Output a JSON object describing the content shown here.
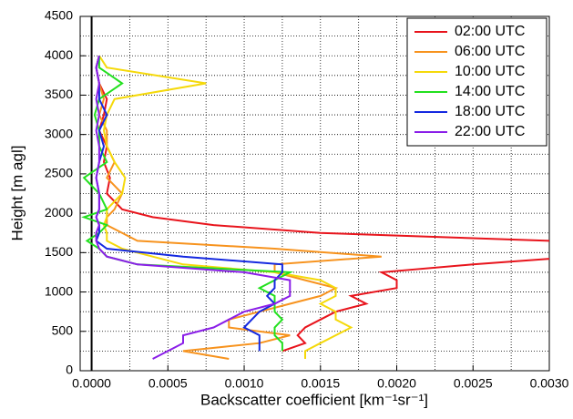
{
  "chart_data": {
    "type": "line",
    "x_label": "Backscatter coefficient [km⁻¹sr⁻¹]",
    "y_label": "Height [m agl]",
    "y": [
      150,
      250,
      350,
      450,
      550,
      650,
      750,
      850,
      950,
      1050,
      1150,
      1250,
      1350,
      1450,
      1550,
      1650,
      1750,
      1850,
      1950,
      2050,
      2250,
      2450,
      2650,
      2850,
      3050,
      3250,
      3450,
      3650,
      3850,
      4000
    ],
    "series": [
      {
        "name": "02:00 UTC",
        "color": "#e8141c",
        "values": [
          null,
          0.00125,
          0.0014,
          0.00135,
          0.0014,
          0.0015,
          0.0016,
          0.0018,
          0.0017,
          0.002,
          0.002,
          0.0019,
          0.0025,
          0.0032,
          0.0034,
          0.003,
          0.0015,
          0.0008,
          0.0004,
          0.0002,
          0.0001,
          0.00012,
          8e-05,
          0.0001,
          5e-05,
          8e-05,
          0.0001,
          5e-05,
          3e-05,
          5e-05
        ]
      },
      {
        "name": "06:00 UTC",
        "color": "#f7931e",
        "values": [
          0.0009,
          0.0006,
          0.0011,
          0.0013,
          0.0009,
          0.0009,
          0.0011,
          0.0013,
          0.0015,
          0.0016,
          0.0014,
          0.0012,
          0.0012,
          0.0019,
          0.0012,
          0.0003,
          0.0002,
          0.0001,
          0.0001,
          0.00015,
          0.0002,
          0.0001,
          0.00015,
          0.0001,
          0.0001,
          5e-05,
          8e-05,
          5e-05,
          3e-05,
          5e-05
        ]
      },
      {
        "name": "10:00 UTC",
        "color": "#f5d90a",
        "values": [
          0.0014,
          0.0014,
          0.0015,
          0.0016,
          0.0017,
          0.0016,
          0.0016,
          0.0015,
          0.0016,
          0.0016,
          0.0015,
          0.0012,
          0.0006,
          0.0004,
          0.0002,
          0.0001,
          0.0001,
          8e-05,
          0.0001,
          0.0001,
          0.0002,
          0.00022,
          0.00015,
          0.0001,
          8e-05,
          0.0001,
          0.00015,
          0.00075,
          0.0001,
          5e-05
        ]
      },
      {
        "name": "14:00 UTC",
        "color": "#22e01e",
        "values": [
          null,
          0.00125,
          0.00125,
          0.0012,
          0.0012,
          0.00125,
          0.0012,
          0.0012,
          0.0012,
          0.0011,
          0.0012,
          0.0013,
          0.0003,
          0.0001,
          5e-05,
          -3e-05,
          5e-05,
          0.0001,
          -5e-05,
          0.0001,
          5e-05,
          -5e-05,
          0.0001,
          5e-05,
          5e-05,
          2e-05,
          5e-05,
          0.0002,
          5e-05,
          5e-05
        ]
      },
      {
        "name": "18:00 UTC",
        "color": "#1428e0",
        "values": [
          null,
          0.0011,
          0.0011,
          0.0011,
          0.001,
          0.00105,
          0.0011,
          0.0012,
          0.00115,
          0.0012,
          0.0012,
          0.00125,
          0.00125,
          0.0006,
          0.0001,
          3e-05,
          5e-05,
          5e-05,
          3e-05,
          5e-05,
          5e-05,
          3e-05,
          5e-05,
          8e-05,
          5e-05,
          0.0001,
          5e-05,
          5e-05,
          3e-05,
          5e-05
        ]
      },
      {
        "name": "22:00 UTC",
        "color": "#8a1ee8",
        "values": [
          0.0004,
          0.0005,
          0.0006,
          0.0006,
          0.0008,
          0.0009,
          0.001,
          0.0012,
          0.0013,
          0.0013,
          0.0013,
          0.001,
          0.0003,
          0.0001,
          5e-05,
          3e-05,
          3e-05,
          5e-05,
          3e-05,
          5e-05,
          5e-05,
          3e-05,
          5e-05,
          5e-05,
          3e-05,
          5e-05,
          3e-05,
          5e-05,
          3e-05,
          5e-05
        ]
      }
    ],
    "xlim": [
      -7.5e-05,
      0.003
    ],
    "xticks": [
      {
        "value": 0,
        "label": "0.0000"
      },
      {
        "value": 0.0005,
        "label": "0.0005"
      },
      {
        "value": 0.001,
        "label": "0.0010"
      },
      {
        "value": 0.0015,
        "label": "0.0015"
      },
      {
        "value": 0.002,
        "label": "0.0020"
      },
      {
        "value": 0.0025,
        "label": "0.0025"
      },
      {
        "value": 0.003,
        "label": "0.0030"
      }
    ],
    "ylim": [
      0,
      4500
    ],
    "yticks": [
      0,
      500,
      1000,
      1500,
      2000,
      2500,
      3000,
      3500,
      4000,
      4500
    ],
    "grid": true,
    "legend": "top-right"
  }
}
